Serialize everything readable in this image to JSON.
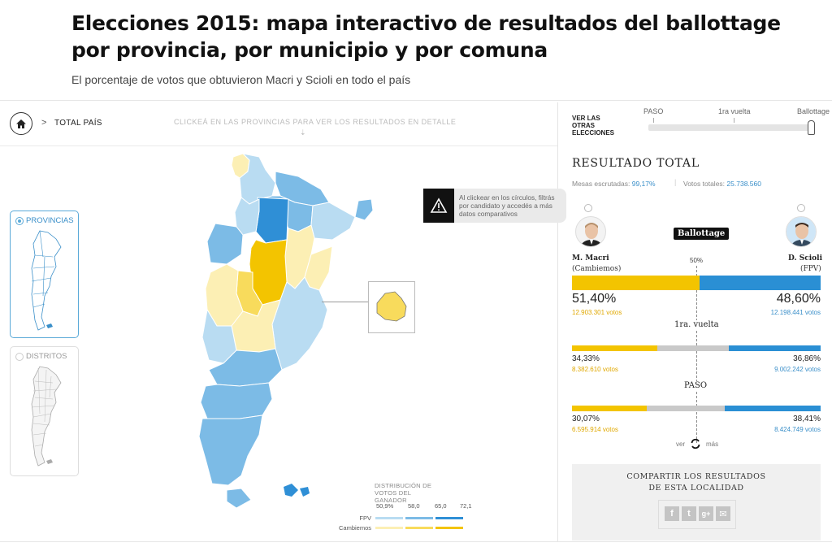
{
  "header": {
    "title": "Elecciones 2015: mapa interactivo de resultados del ballottage por provincia, por municipio y por comuna",
    "subtitle": "El porcentaje de votos que obtuvieron Macri y Scioli en todo el país"
  },
  "breadcrumb": {
    "home_icon": "home-icon",
    "separator": ">",
    "current": "TOTAL PAÍS",
    "hint": "CLICKEÁ EN LAS PROVINCIAS PARA VER LOS RESULTADOS EN DETALLE",
    "hint_arrow": "⇣"
  },
  "timeline": {
    "label": "VER LAS OTRAS ELECCIONES",
    "stages": [
      "PASO",
      "1ra vuelta",
      "Ballottage"
    ],
    "selected": "Ballottage"
  },
  "side": {
    "provincias_label": "PROVINCIAS",
    "distritos_label": "DISTRITOS",
    "selected": "PROVINCIAS"
  },
  "tooltip": {
    "icon": "warning-icon",
    "text": "Al clickear en los círculos, filtrás por candidato y accedés a más datos comparativos"
  },
  "legend": {
    "title": "DISTRIBUCIÓN DE VOTOS DEL GANADOR",
    "ticks": [
      "50,9%",
      "58,0",
      "65,0",
      "72,1"
    ],
    "rows": [
      {
        "label": "FPV",
        "colors": [
          "#b9dcf2",
          "#7cbbe6",
          "#2f8fd6"
        ]
      },
      {
        "label": "Cambiemos",
        "colors": [
          "#fcefb4",
          "#f8db5c",
          "#f3c400"
        ]
      }
    ]
  },
  "results": {
    "title": "RESULTADO TOTAL",
    "mesas_label": "Mesas escrutadas:",
    "mesas_value": "99,17%",
    "separator": "|",
    "votos_label": "Votos totales:",
    "votos_value": "25.738.560",
    "badge": "Ballottage",
    "fifty_label": "50%",
    "candidates": [
      {
        "name": "M. Macri",
        "party": "(Cambiemos)",
        "color": "#f3c400"
      },
      {
        "name": "D. Scioli",
        "party": "(FPV)",
        "color": "#2a8fd4"
      }
    ],
    "rounds": [
      {
        "label": "Ballottage",
        "left_pct": "51,40%",
        "left_votes": "12.903.301 votos",
        "right_pct": "48,60%",
        "right_votes": "12.198.441 votos",
        "left_share": 51.4,
        "other_share": 0,
        "right_share": 48.6
      },
      {
        "label": "1ra. vuelta",
        "left_pct": "34,33%",
        "left_votes": "8.382.610 votos",
        "right_pct": "36,86%",
        "right_votes": "9.002.242 votos",
        "left_share": 34.33,
        "other_share": 28.81,
        "right_share": 36.86
      },
      {
        "label": "PASO",
        "left_pct": "30,07%",
        "left_votes": "6.595.914 votos",
        "right_pct": "38,41%",
        "right_votes": "8.424.749 votos",
        "left_share": 30.07,
        "other_share": 31.52,
        "right_share": 38.41
      }
    ],
    "ver_label": "ver",
    "mas_label": "más"
  },
  "share": {
    "title": "COMPARTIR LOS RESULTADOS DE ESTA LOCALIDAD",
    "icons": [
      "facebook-icon",
      "twitter-icon",
      "google-plus-icon",
      "email-icon"
    ],
    "glyphs": [
      "f",
      "t",
      "g+",
      "✉"
    ]
  },
  "colors": {
    "fpv": "#2a8fd4",
    "cambiemos": "#f3c400",
    "other": "#c9c9c9"
  }
}
